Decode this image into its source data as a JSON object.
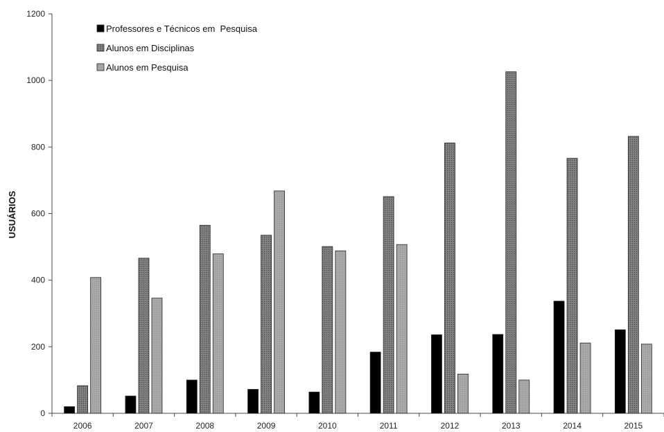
{
  "chart_data": {
    "type": "bar",
    "title": "",
    "xlabel": "",
    "ylabel": "USUÁRIOS",
    "ylim": [
      0,
      1200
    ],
    "yticks": [
      0,
      200,
      400,
      600,
      800,
      1000,
      1200
    ],
    "grid": false,
    "legend_position": "top-left",
    "categories": [
      "2006",
      "2007",
      "2008",
      "2009",
      "2010",
      "2011",
      "2012",
      "2013",
      "2014",
      "2015"
    ],
    "series": [
      {
        "name": "Professores e Técnicos em  Pesquisa",
        "color": "#000000",
        "pattern": "solid",
        "values": [
          20,
          52,
          100,
          72,
          64,
          184,
          236,
          237,
          337,
          251
        ]
      },
      {
        "name": "Alunos em Disciplinas",
        "color": "#7a7a7a",
        "pattern": "hatched",
        "values": [
          83,
          466,
          565,
          535,
          501,
          651,
          812,
          1026,
          766,
          832
        ]
      },
      {
        "name": "Alunos em Pesquisa",
        "color": "#a6a6a6",
        "pattern": "light",
        "values": [
          408,
          346,
          479,
          668,
          488,
          507,
          118,
          100,
          211,
          208
        ]
      }
    ]
  }
}
